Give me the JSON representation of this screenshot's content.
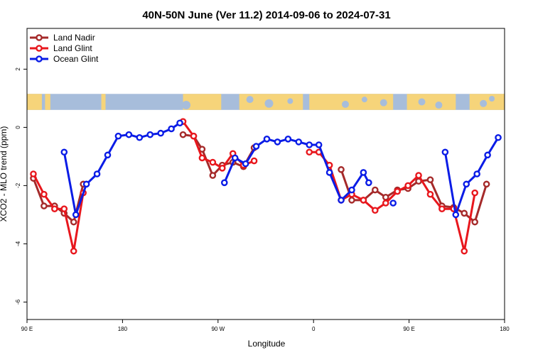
{
  "chart_data": {
    "type": "line",
    "title": "40N-50N June (Ver 11.2)   2014-09-06 to 2024-07-31",
    "xlabel": "Longitude",
    "ylabel": "XCO2 - MLO trend (ppm)",
    "ylim": [
      -6.6,
      3.4
    ],
    "y_ticks": [
      {
        "value": 2,
        "label": "2"
      },
      {
        "value": 0,
        "label": "0"
      },
      {
        "value": -2,
        "label": "-2"
      },
      {
        "value": -4,
        "label": "-4"
      },
      {
        "value": -6,
        "label": "-6"
      }
    ],
    "x_ticks": [
      {
        "value": 0,
        "label": "90 E"
      },
      {
        "value": 90,
        "label": "180"
      },
      {
        "value": 180,
        "label": "90 W"
      },
      {
        "value": 270,
        "label": "0"
      },
      {
        "value": 360,
        "label": "90 E"
      },
      {
        "value": 450,
        "label": "180"
      }
    ],
    "xlim": [
      0,
      450
    ],
    "grid": false,
    "legend_position": "top-left",
    "map_strip": {
      "ymin": 0.6,
      "ymax": 1.15,
      "ocean_color": "#a7bddb",
      "land_color": "#f6d47a"
    },
    "series": [
      {
        "name": "Land Nadir",
        "color": "#a52a2a",
        "segments": [
          [
            [
              6,
              -1.75
            ],
            [
              16,
              -2.7
            ],
            [
              26,
              -2.7
            ],
            [
              35,
              -2.95
            ],
            [
              44,
              -3.25
            ],
            [
              53,
              -1.95
            ]
          ],
          [
            [
              147,
              -0.25
            ],
            [
              157,
              -0.3
            ],
            [
              165,
              -0.75
            ],
            [
              175,
              -1.65
            ],
            [
              184,
              -1.3
            ],
            [
              194,
              -1.2
            ],
            [
              204,
              -1.35
            ],
            [
              214,
              -0.7
            ]
          ],
          [
            [
              296,
              -1.45
            ],
            [
              306,
              -2.5
            ],
            [
              317,
              -2.5
            ],
            [
              328,
              -2.15
            ],
            [
              338,
              -2.4
            ],
            [
              349,
              -2.15
            ],
            [
              359,
              -2.1
            ],
            [
              369,
              -1.85
            ],
            [
              380,
              -1.8
            ],
            [
              391,
              -2.7
            ],
            [
              402,
              -2.75
            ],
            [
              412,
              -2.95
            ],
            [
              422,
              -3.25
            ],
            [
              433,
              -1.95
            ]
          ]
        ]
      },
      {
        "name": "Land Glint",
        "color": "#e8171d",
        "segments": [
          [
            [
              6,
              -1.6
            ],
            [
              16,
              -2.3
            ],
            [
              26,
              -2.8
            ],
            [
              35,
              -2.8
            ],
            [
              44,
              -4.25
            ],
            [
              53,
              -2.25
            ]
          ],
          [
            [
              147,
              0.2
            ],
            [
              157,
              -0.3
            ],
            [
              165,
              -1.05
            ],
            [
              175,
              -1.2
            ],
            [
              184,
              -1.4
            ],
            [
              194,
              -0.9
            ],
            [
              204,
              -1.3
            ],
            [
              214,
              -1.15
            ]
          ],
          [
            [
              266,
              -0.85
            ],
            [
              275,
              -0.85
            ],
            [
              285,
              -1.3
            ],
            [
              296,
              -2.5
            ],
            [
              306,
              -2.3
            ],
            [
              317,
              -2.5
            ],
            [
              328,
              -2.85
            ],
            [
              338,
              -2.6
            ],
            [
              349,
              -2.2
            ],
            [
              359,
              -2.0
            ],
            [
              369,
              -1.65
            ],
            [
              380,
              -2.3
            ],
            [
              391,
              -2.8
            ],
            [
              402,
              -2.8
            ],
            [
              412,
              -4.25
            ],
            [
              422,
              -2.25
            ]
          ]
        ]
      },
      {
        "name": "Ocean Glint",
        "color": "#0a1ce6",
        "segments": [
          [
            [
              35,
              -0.85
            ],
            [
              46,
              -3.0
            ],
            [
              56,
              -1.95
            ],
            [
              66,
              -1.6
            ],
            [
              76,
              -0.95
            ],
            [
              86,
              -0.3
            ],
            [
              96,
              -0.25
            ],
            [
              106,
              -0.35
            ],
            [
              116,
              -0.25
            ],
            [
              126,
              -0.2
            ],
            [
              136,
              -0.05
            ],
            [
              144,
              0.15
            ]
          ],
          [
            [
              186,
              -1.9
            ],
            [
              196,
              -1.05
            ],
            [
              206,
              -1.25
            ],
            [
              216,
              -0.65
            ],
            [
              226,
              -0.4
            ],
            [
              236,
              -0.5
            ],
            [
              246,
              -0.4
            ],
            [
              256,
              -0.5
            ],
            [
              266,
              -0.6
            ],
            [
              275,
              -0.6
            ],
            [
              285,
              -1.55
            ],
            [
              296,
              -2.5
            ],
            [
              306,
              -2.15
            ],
            [
              317,
              -1.55
            ],
            [
              322,
              -1.9
            ]
          ],
          [
            [
              345,
              -2.6
            ]
          ],
          [
            [
              394,
              -0.85
            ],
            [
              404,
              -3.0
            ],
            [
              414,
              -1.95
            ],
            [
              424,
              -1.6
            ],
            [
              434,
              -0.95
            ],
            [
              444,
              -0.35
            ]
          ]
        ]
      }
    ]
  }
}
